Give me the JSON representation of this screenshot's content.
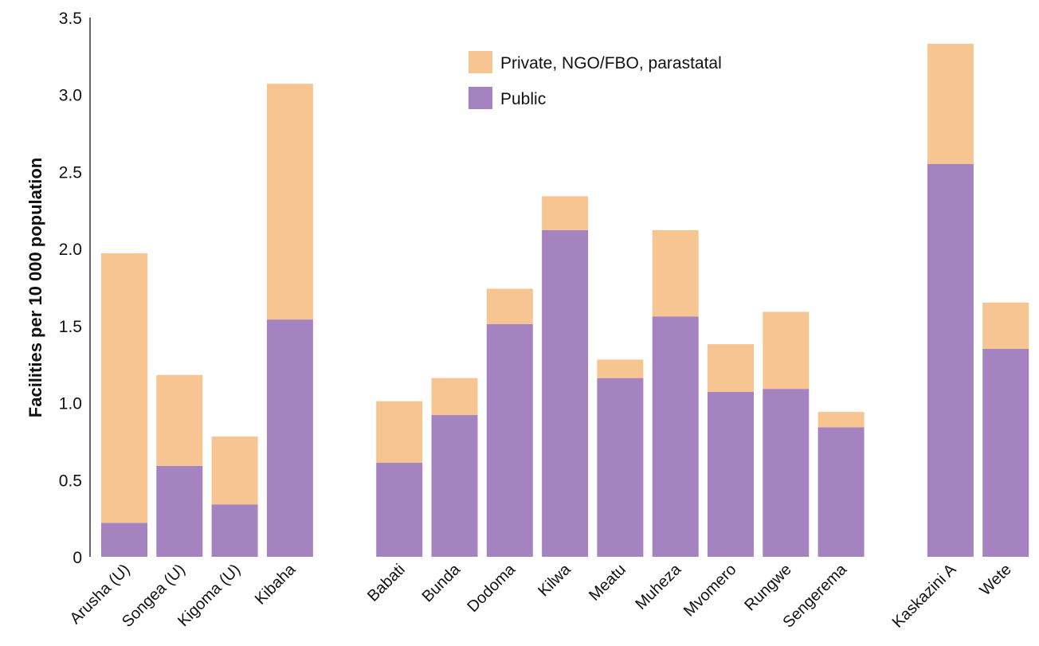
{
  "chart_data": {
    "type": "bar",
    "stacked": true,
    "ylabel": "Facilities per 10 000 population",
    "ylim": [
      0,
      3.5
    ],
    "yticks": [
      "0",
      "0.5",
      "1.0",
      "1.5",
      "2.0",
      "2.5",
      "3.0",
      "3.5"
    ],
    "ytick_values": [
      0,
      0.5,
      1.0,
      1.5,
      2.0,
      2.5,
      3.0,
      3.5
    ],
    "grid": false,
    "legend_position": "top-center",
    "categories": [
      "Arusha (U)",
      "Songea (U)",
      "Kigoma (U)",
      "Kibaha",
      "Babati",
      "Bunda",
      "Dodoma",
      "Kilwa",
      "Meatu",
      "Muheza",
      "Mvomero",
      "Rungwe",
      "Sengerema",
      "Kaskazini A",
      "Wete"
    ],
    "groups": [
      4,
      9,
      2
    ],
    "series": [
      {
        "name": "Public",
        "color": "#a583c1",
        "values": [
          0.22,
          0.59,
          0.34,
          1.54,
          0.61,
          0.92,
          1.51,
          2.12,
          1.16,
          1.56,
          1.07,
          1.09,
          0.84,
          2.55,
          1.35
        ]
      },
      {
        "name": "Private, NGO/FBO, parastatal",
        "color": "#f7c591",
        "values": [
          1.75,
          0.59,
          0.44,
          1.53,
          0.4,
          0.24,
          0.23,
          0.22,
          0.12,
          0.56,
          0.31,
          0.5,
          0.1,
          0.78,
          0.3
        ]
      }
    ],
    "legend": [
      {
        "label": "Private, NGO/FBO, parastatal",
        "color": "#f7c591"
      },
      {
        "label": "Public",
        "color": "#a583c1"
      }
    ]
  }
}
